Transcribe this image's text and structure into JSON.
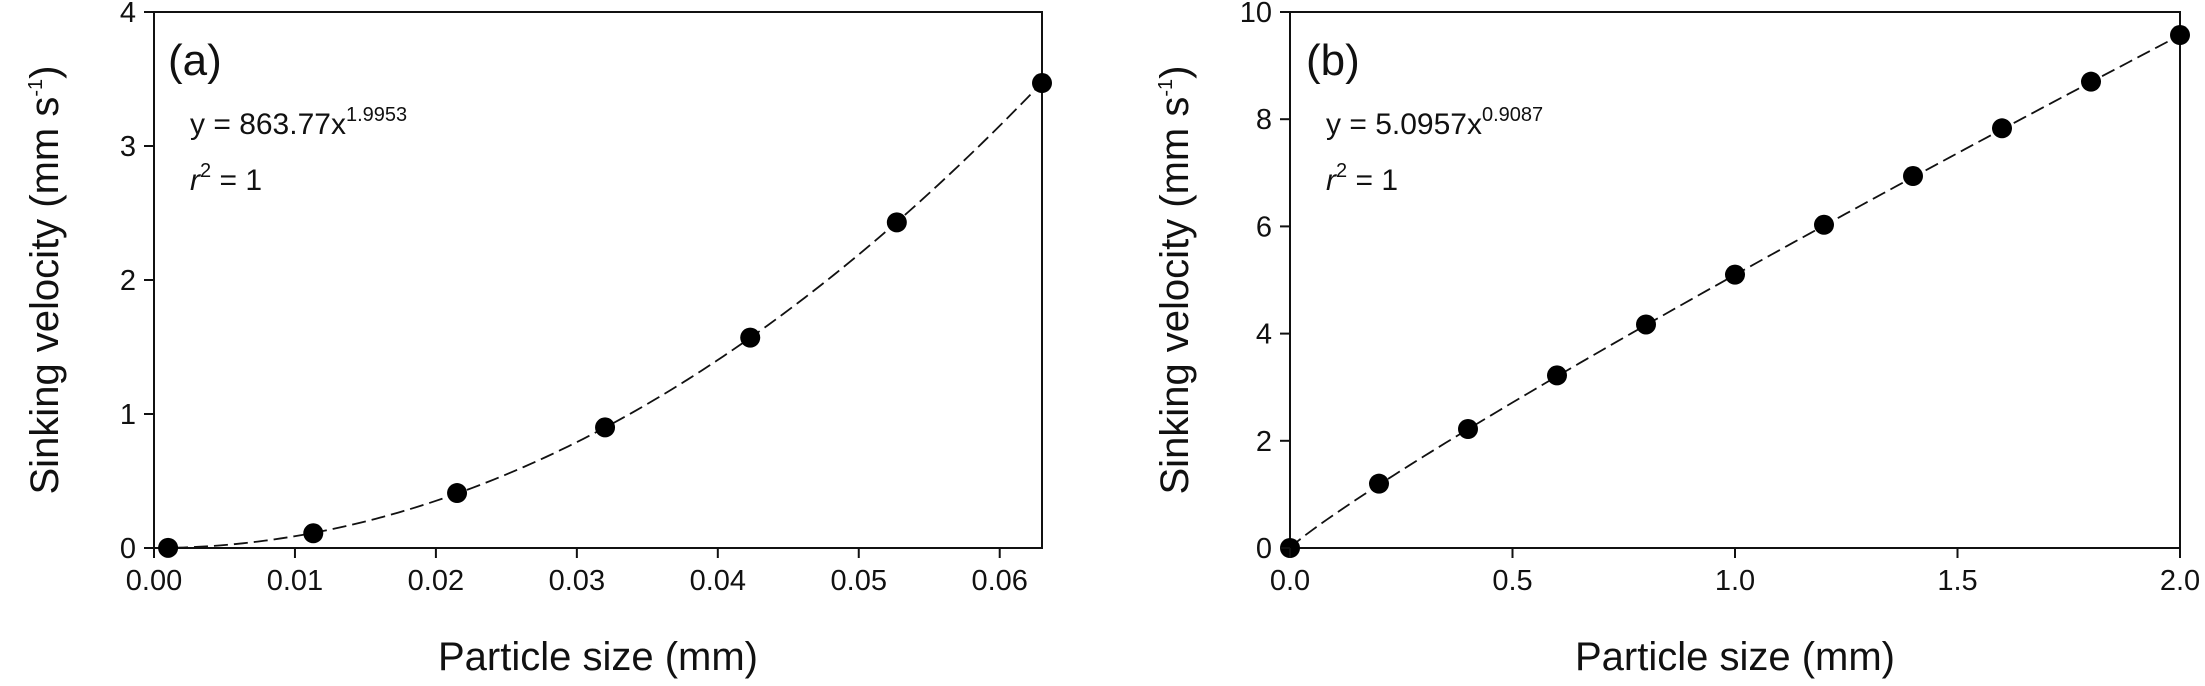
{
  "chart_data": [
    {
      "type": "scatter",
      "panel_label": "(a)",
      "xlabel": "Particle size (mm)",
      "ylabel": "Sinking velocity (mm s",
      "ylabel_sup": "-1",
      "ylabel_end": ")",
      "xlim": [
        0,
        0.063
      ],
      "ylim": [
        0,
        4
      ],
      "xticks": [
        0,
        0.01,
        0.02,
        0.03,
        0.04,
        0.05,
        0.06
      ],
      "xtick_labels": [
        "0.00",
        "0.01",
        "0.02",
        "0.03",
        "0.04",
        "0.05",
        "0.06"
      ],
      "yticks": [
        0,
        1,
        2,
        3,
        4
      ],
      "ytick_labels": [
        "0",
        "1",
        "2",
        "3",
        "4"
      ],
      "equation": "y = 863.77x",
      "equation_exp": "1.9953",
      "r2_var": "r",
      "r2_exp": "2",
      "r2_rest": " = 1",
      "fit": {
        "a": 863.77,
        "b": 1.9953
      },
      "series": [
        {
          "x": [
            0.001,
            0.0113,
            0.0215,
            0.032,
            0.0423,
            0.0527,
            0.063
          ],
          "y": [
            0.001,
            0.11,
            0.41,
            0.9,
            1.57,
            2.43,
            3.47
          ]
        }
      ]
    },
    {
      "type": "scatter",
      "panel_label": "(b)",
      "xlabel": "Particle size (mm)",
      "ylabel": "Sinking velocity (mm s",
      "ylabel_sup": "-1",
      "ylabel_end": ")",
      "xlim": [
        0,
        2
      ],
      "ylim": [
        0,
        10
      ],
      "xticks": [
        0,
        0.5,
        1.0,
        1.5,
        2.0
      ],
      "xtick_labels": [
        "0.0",
        "0.5",
        "1.0",
        "1.5",
        "2.0"
      ],
      "yticks": [
        0,
        2,
        4,
        6,
        8,
        10
      ],
      "ytick_labels": [
        "0",
        "2",
        "4",
        "6",
        "8",
        "10"
      ],
      "equation": "y = 5.0957x",
      "equation_exp": "0.9087",
      "r2_var": "r",
      "r2_exp": "2",
      "r2_rest": " = 1",
      "fit": {
        "a": 5.0957,
        "b": 0.9087
      },
      "series": [
        {
          "x": [
            0,
            0.2,
            0.4,
            0.6,
            0.8,
            1.0,
            1.2,
            1.4,
            1.6,
            1.8,
            2.0
          ],
          "y": [
            0,
            1.2,
            2.22,
            3.22,
            4.17,
            5.1,
            6.03,
            6.94,
            7.83,
            8.7,
            9.57
          ]
        }
      ]
    }
  ]
}
